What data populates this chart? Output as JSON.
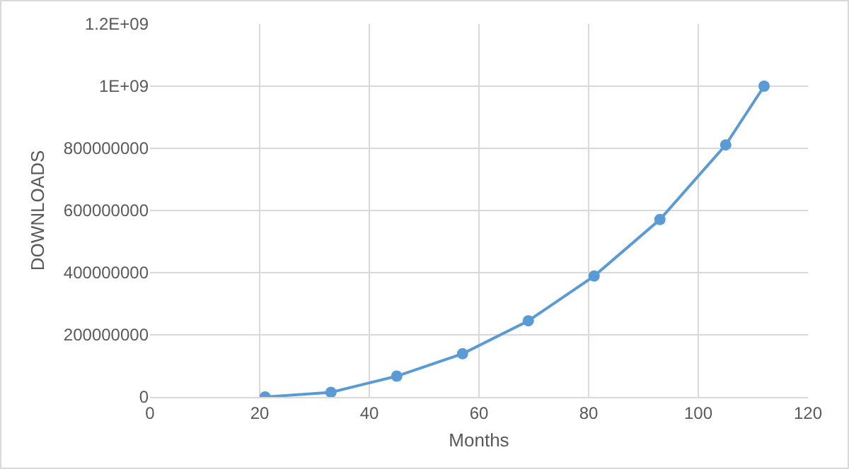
{
  "chart_data": {
    "type": "line",
    "xlabel": "Months",
    "ylabel": "DOWNLOADS",
    "x": [
      21,
      33,
      45,
      57,
      69,
      81,
      93,
      105,
      112
    ],
    "series": [
      {
        "color": "#5b9bd5",
        "values": [
          0,
          15000000,
          67000000,
          139000000,
          245000000,
          389000000,
          571000000,
          811000000,
          1000000000
        ]
      }
    ],
    "xlim": [
      0,
      120
    ],
    "xticks": [
      0,
      20,
      40,
      60,
      80,
      100,
      120
    ],
    "ylim": [
      0,
      1200000000
    ],
    "yticks": [
      0,
      {
        "value": 200000000,
        "label": "200000000"
      },
      {
        "value": 400000000,
        "label": "400000000"
      },
      {
        "value": 600000000,
        "label": "600000000"
      },
      {
        "value": 800000000,
        "label": "800000000"
      },
      {
        "value": 1000000000,
        "label": "1E+09"
      },
      {
        "value": 1200000000,
        "label": "1.2E+09"
      }
    ],
    "grid": true,
    "marker": "circle",
    "line_style": "solid"
  }
}
